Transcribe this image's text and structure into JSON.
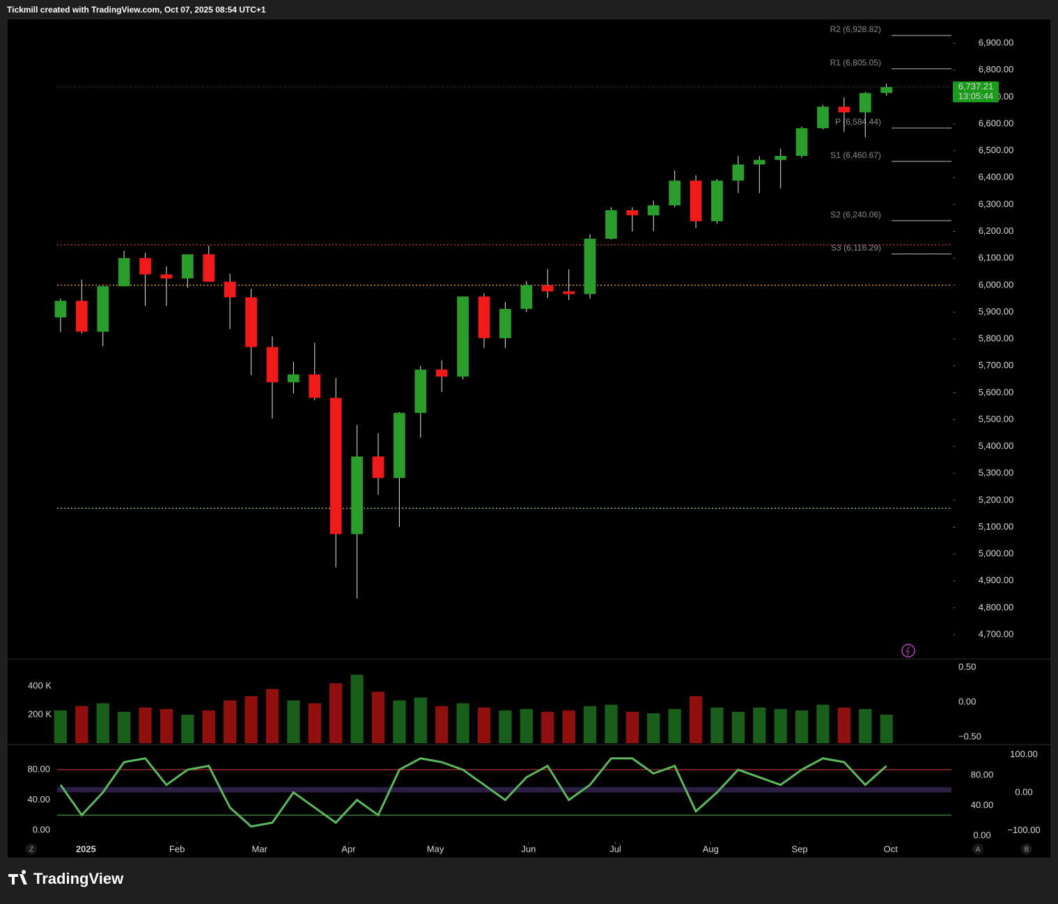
{
  "header": {
    "text": "Tickmill created with TradingView.com, Oct 07, 2025 08:54 UTC+1"
  },
  "branding": {
    "name": "TradingView"
  },
  "buttons": {
    "left": "Z",
    "right": [
      "A",
      "B"
    ]
  },
  "chart_data": [
    {
      "type": "candlestick",
      "x": [
        0,
        1,
        2,
        3,
        4,
        5,
        6,
        7,
        8,
        9,
        10,
        11,
        12,
        13,
        14,
        15,
        16,
        17,
        18,
        19,
        20,
        21,
        22,
        23,
        24,
        25,
        26,
        27,
        28,
        29,
        30,
        31,
        32,
        33,
        34,
        35,
        36,
        37,
        38,
        39
      ],
      "open": [
        5880,
        5942,
        5827,
        5996,
        6101,
        6040,
        6025,
        6115,
        6013,
        5955,
        5770,
        5639,
        5668,
        5581,
        5074,
        5363,
        5283,
        5525,
        5686,
        5660,
        5958,
        5803,
        5912,
        6000,
        5977,
        5967,
        6173,
        6279,
        6260,
        6297,
        6389,
        6238,
        6389,
        6449,
        6466,
        6481,
        6584,
        6664,
        6643,
        6715
      ],
      "high": [
        5950,
        6021,
        5997,
        6128,
        6120,
        6070,
        6100,
        6147,
        6043,
        5986,
        5810,
        5715,
        5786,
        5655,
        5480,
        5450,
        5528,
        5700,
        5720,
        5959,
        5970,
        5938,
        6016,
        6060,
        6059,
        6190,
        6290,
        6290,
        6315,
        6427,
        6409,
        6395,
        6481,
        6480,
        6508,
        6590,
        6671,
        6699,
        6718,
        6750
      ],
      "low": [
        5825,
        5820,
        5773,
        5995,
        5923,
        5923,
        5990,
        6013,
        5837,
        5666,
        5504,
        5597,
        5572,
        4950,
        4835,
        5220,
        5101,
        5433,
        5603,
        5650,
        5767,
        5767,
        5900,
        5952,
        5945,
        5950,
        6170,
        6200,
        6201,
        6290,
        6212,
        6230,
        6343,
        6343,
        6360,
        6474,
        6580,
        6570,
        6550,
        6705
      ],
      "close": [
        5942,
        5827,
        5996,
        6101,
        6040,
        6025,
        6115,
        6013,
        5955,
        5770,
        5639,
        5668,
        5581,
        5074,
        5363,
        5283,
        5525,
        5686,
        5660,
        5958,
        5803,
        5912,
        6000,
        5977,
        5967,
        6173,
        6279,
        6260,
        6297,
        6389,
        6238,
        6389,
        6449,
        6466,
        6481,
        6584,
        6664,
        6643,
        6715,
        6737
      ],
      "up_color": "#2a9d2c",
      "down_color": "#f01a1a",
      "xlim": [
        -2.53,
        42.2
      ],
      "xticks": [
        {
          "value": 1.2,
          "label": "2025"
        },
        {
          "value": 5.5,
          "label": "Feb"
        },
        {
          "value": 9.4,
          "label": "Mar"
        },
        {
          "value": 13.6,
          "label": "Apr"
        },
        {
          "value": 17.7,
          "label": "May"
        },
        {
          "value": 22.1,
          "label": "Jun"
        },
        {
          "value": 26.2,
          "label": "Jul"
        },
        {
          "value": 30.7,
          "label": "Aug"
        },
        {
          "value": 34.9,
          "label": "Sep"
        },
        {
          "value": 39.2,
          "label": "Oct"
        }
      ],
      "ylim": [
        4612,
        6991
      ],
      "yticks": [
        {
          "value": 4700,
          "label": "4,700.00"
        },
        {
          "value": 4800,
          "label": "4,800.00"
        },
        {
          "value": 4900,
          "label": "4,900.00"
        },
        {
          "value": 5000,
          "label": "5,000.00"
        },
        {
          "value": 5100,
          "label": "5,100.00"
        },
        {
          "value": 5200,
          "label": "5,200.00"
        },
        {
          "value": 5300,
          "label": "5,300.00"
        },
        {
          "value": 5400,
          "label": "5,400.00"
        },
        {
          "value": 5500,
          "label": "5,500.00"
        },
        {
          "value": 5600,
          "label": "5,600.00"
        },
        {
          "value": 5700,
          "label": "5,700.00"
        },
        {
          "value": 5800,
          "label": "5,800.00"
        },
        {
          "value": 5900,
          "label": "5,900.00"
        },
        {
          "value": 6000,
          "label": "6,000.00"
        },
        {
          "value": 6100,
          "label": "6,100.00"
        },
        {
          "value": 6200,
          "label": "6,200.00"
        },
        {
          "value": 6300,
          "label": "6,300.00"
        },
        {
          "value": 6400,
          "label": "6,400.00"
        },
        {
          "value": 6500,
          "label": "6,500.00"
        },
        {
          "value": 6600,
          "label": "6,600.00"
        },
        {
          "value": 6700,
          "label": "6,700.00"
        },
        {
          "value": 6800,
          "label": "6,800.00"
        },
        {
          "value": 6900,
          "label": "6,900.00"
        }
      ],
      "pivots": [
        {
          "value": 6928.82,
          "label": "R2 (6,928.82)"
        },
        {
          "value": 6805.05,
          "label": "R1 (6,805.05)"
        },
        {
          "value": 6584.44,
          "label": "P (6,584.44)"
        },
        {
          "value": 6460.67,
          "label": "S1 (6,460.67)"
        },
        {
          "value": 6240.06,
          "label": "S2 (6,240.06)"
        },
        {
          "value": 6116.29,
          "label": "S3 (6,116.29)"
        }
      ],
      "levels": [
        {
          "value": 6150,
          "color": "#e04040"
        },
        {
          "value": 6000,
          "color": "#f0a030"
        },
        {
          "value": 5170,
          "color": "#8fd080"
        }
      ],
      "last_price": {
        "value": 6737.21,
        "label": "6,737.21",
        "timer": "13:05:44",
        "color": "#1a9c1a"
      }
    },
    {
      "type": "bar",
      "values": [
        230000,
        260000,
        280000,
        220000,
        250000,
        240000,
        200000,
        230000,
        300000,
        330000,
        380000,
        300000,
        280000,
        420000,
        480000,
        360000,
        300000,
        320000,
        260000,
        280000,
        250000,
        230000,
        240000,
        220000,
        230000,
        260000,
        270000,
        220000,
        210000,
        240000,
        330000,
        250000,
        220000,
        250000,
        240000,
        230000,
        270000,
        250000,
        240000,
        200000
      ],
      "ylim": [
        0,
        585000
      ],
      "yticks": [
        {
          "value": 200000,
          "label": "200 K"
        },
        {
          "value": 400000,
          "label": "400 K"
        }
      ],
      "y2lim": [
        -0.59,
        0.61
      ],
      "y2ticks": [
        {
          "value": 0.5,
          "label": "0.50"
        },
        {
          "value": 0,
          "label": "0.00"
        },
        {
          "value": -0.5,
          "label": "−0.50"
        }
      ]
    },
    {
      "type": "line",
      "values": [
        60,
        20,
        50,
        90,
        95,
        60,
        80,
        85,
        30,
        5,
        10,
        50,
        30,
        10,
        40,
        20,
        80,
        95,
        90,
        80,
        60,
        40,
        70,
        85,
        40,
        60,
        95,
        95,
        75,
        85,
        25,
        50,
        80,
        70,
        60,
        80,
        95,
        90,
        60,
        85
      ],
      "color": "#5cb85c",
      "ylim": [
        -15.6,
        111.3
      ],
      "yticks": [
        {
          "value": 0,
          "label": "0.00"
        },
        {
          "value": 40,
          "label": "40.00"
        },
        {
          "value": 80,
          "label": "80.00"
        }
      ],
      "y2lim": [
        -130.3,
        122.9
      ],
      "y2ticks": [
        {
          "value": -100,
          "label": "−100.00"
        },
        {
          "value": 0,
          "label": "0.00"
        },
        {
          "value": 100,
          "label": "100.00"
        }
      ],
      "hlines": [
        {
          "value": 80,
          "color": "#e04040"
        },
        {
          "value": 20,
          "color": "#4caf50"
        }
      ],
      "band": [
        50,
        57
      ]
    }
  ]
}
